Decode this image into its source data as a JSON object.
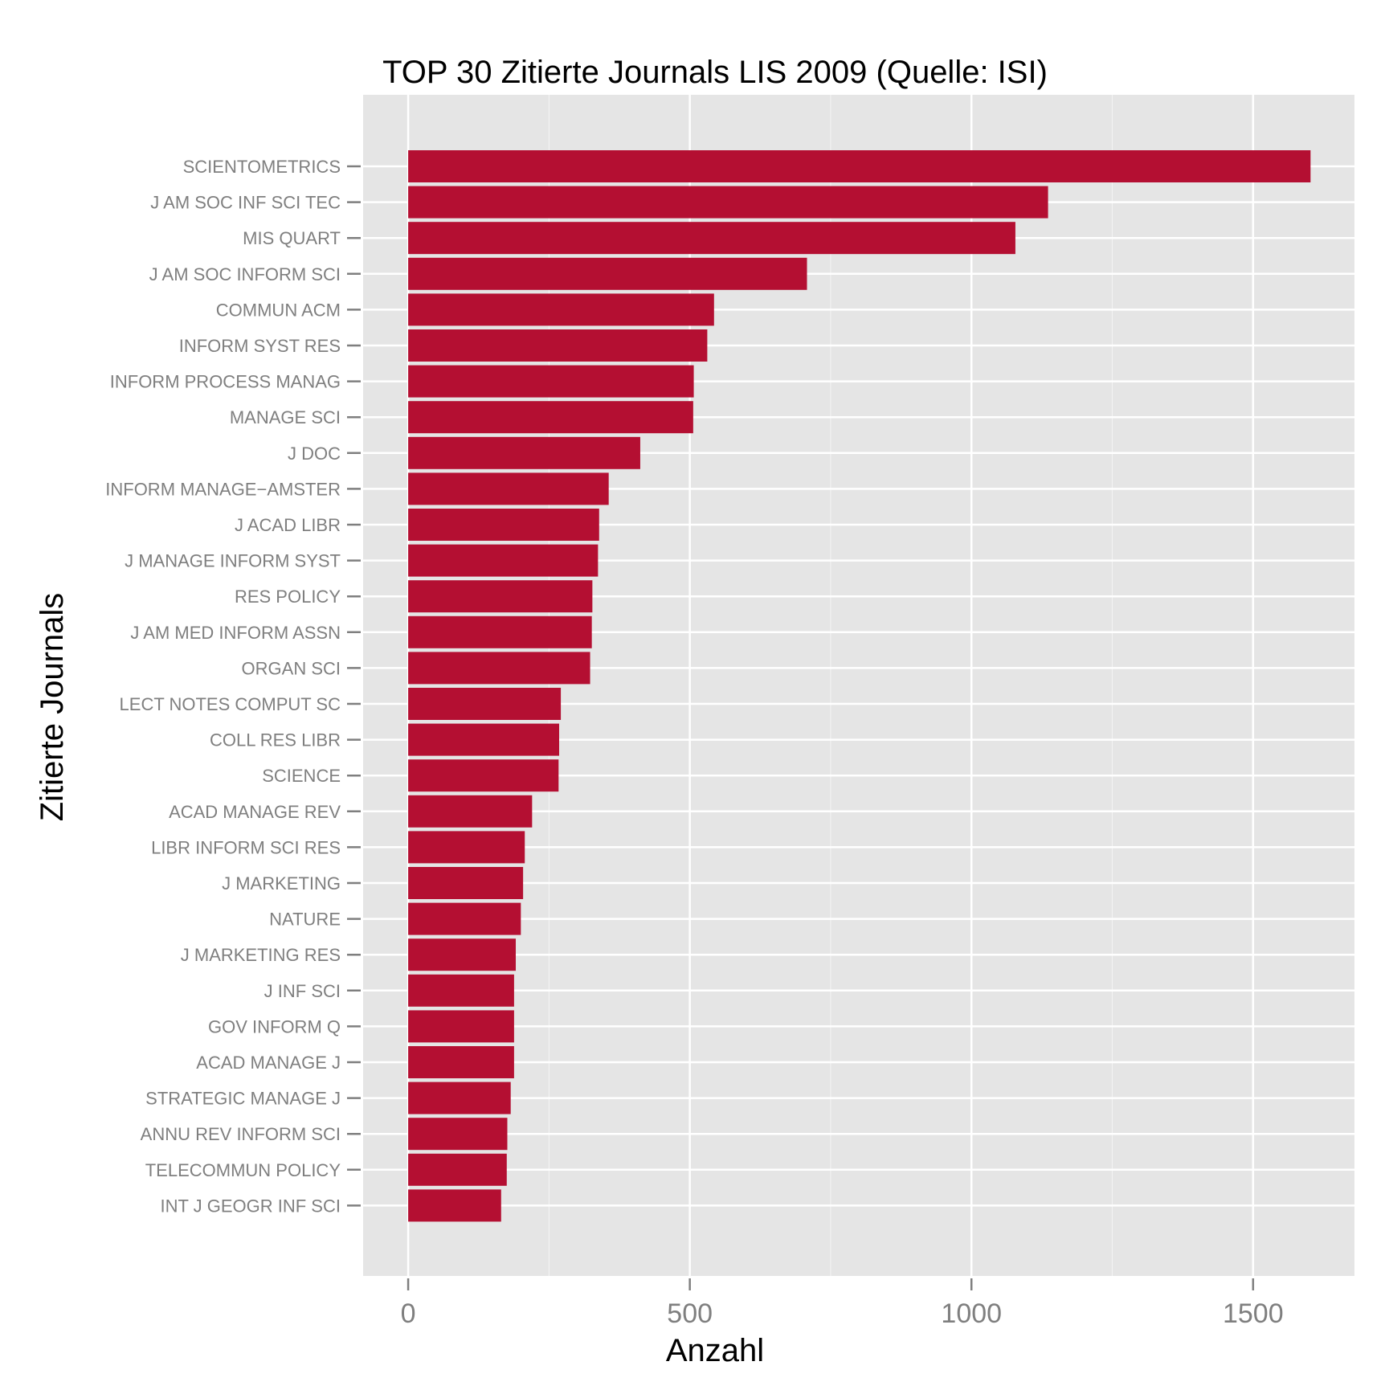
{
  "colors": {
    "panel_background": "#e5e5e5",
    "grid_major": "#ffffff",
    "grid_minor": "#f2f2f2",
    "bar_fill": "#b40f32",
    "tick_label": "#7f7f7f",
    "tick_mark": "#7f7f7f"
  },
  "chart_data": {
    "type": "bar",
    "orientation": "horizontal",
    "title": "TOP 30 Zitierte Journals LIS 2009 (Quelle: ISI)",
    "xlabel": "Anzahl",
    "ylabel": "Zitierte Journals",
    "xlim": [
      -80,
      1680
    ],
    "xticks": [
      0,
      500,
      1000,
      1500
    ],
    "xtick_labels": [
      "0",
      "500",
      "1000",
      "1500"
    ],
    "grid": true,
    "categories": [
      "SCIENTOMETRICS",
      "J AM SOC INF SCI TEC",
      "MIS QUART",
      "J AM SOC INFORM SCI",
      "COMMUN ACM",
      "INFORM SYST RES",
      "INFORM PROCESS MANAG",
      "MANAGE SCI",
      "J DOC",
      "INFORM MANAGE−AMSTER",
      "J ACAD LIBR",
      "J MANAGE INFORM SYST",
      "RES POLICY",
      "J AM MED INFORM ASSN",
      "ORGAN SCI",
      "LECT NOTES COMPUT SC",
      "COLL RES LIBR",
      "SCIENCE",
      "ACAD MANAGE REV",
      "LIBR INFORM SCI RES",
      "J MARKETING",
      "NATURE",
      "J MARKETING RES",
      "J INF SCI",
      "GOV INFORM Q",
      "ACAD MANAGE J",
      "STRATEGIC MANAGE J",
      "ANNU REV INFORM SCI",
      "TELECOMMUN POLICY",
      "INT J GEOGR INF SCI"
    ],
    "values": [
      1602,
      1136,
      1078,
      708,
      543,
      531,
      507,
      506,
      412,
      356,
      339,
      337,
      327,
      326,
      323,
      271,
      268,
      267,
      220,
      207,
      204,
      200,
      191,
      188,
      188,
      188,
      182,
      176,
      175,
      165
    ]
  }
}
